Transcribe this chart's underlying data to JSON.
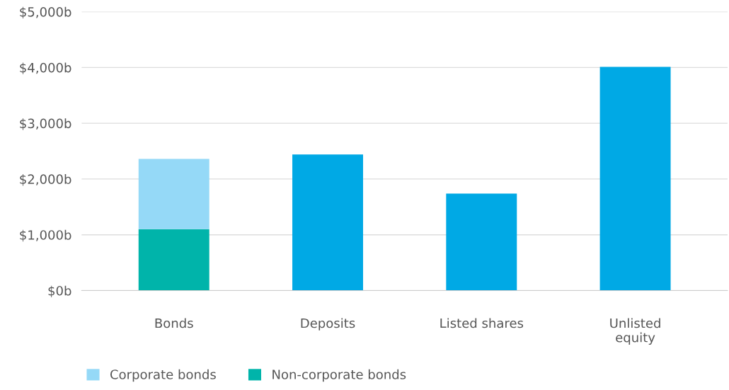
{
  "chart_data": {
    "type": "bar",
    "stacked": true,
    "categories": [
      "Bonds",
      "Deposits",
      "Listed shares",
      "Unlisted\nequity"
    ],
    "series": [
      {
        "name": "Non-corporate bonds",
        "color": "#00b4aa",
        "values": [
          1100,
          null,
          null,
          null
        ]
      },
      {
        "name": "Corporate bonds",
        "color": "#95d9f7",
        "values": [
          1260,
          null,
          null,
          null
        ]
      },
      {
        "color": "#00a9e5",
        "values": [
          null,
          2440,
          1740,
          4010
        ]
      }
    ],
    "ylim": [
      0,
      5000
    ],
    "yticks": [
      {
        "value": 0,
        "label": "$0b"
      },
      {
        "value": 1000,
        "label": "$1,000b"
      },
      {
        "value": 2000,
        "label": "$2,000b"
      },
      {
        "value": 3000,
        "label": "$3,000b"
      },
      {
        "value": 4000,
        "label": "$4,000b"
      },
      {
        "value": 5000,
        "label": "$5,000b"
      }
    ],
    "grid": "y",
    "legend": "bottom left"
  }
}
